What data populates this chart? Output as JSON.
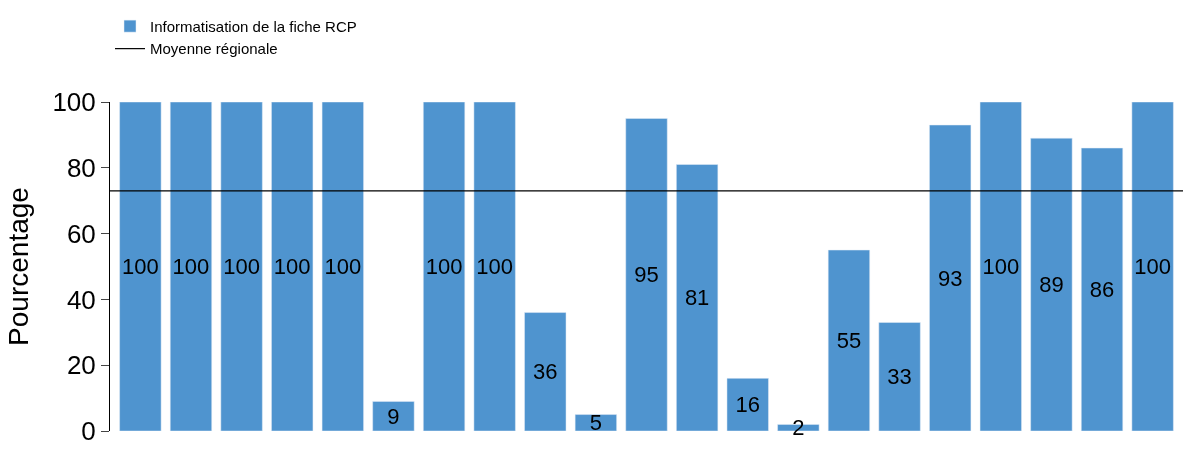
{
  "chart_data": {
    "type": "bar",
    "ylabel": "Pourcentage",
    "categories": [
      null,
      null,
      null,
      null,
      null,
      null,
      null,
      null,
      null,
      null,
      null,
      null,
      null,
      null,
      null,
      null,
      null,
      null,
      null,
      null,
      null
    ],
    "series": [
      {
        "name": "Informatisation de la fiche RCP",
        "color": "#4f94cf",
        "values": [
          100,
          100,
          100,
          100,
          100,
          9,
          100,
          100,
          36,
          5,
          95,
          81,
          16,
          2,
          55,
          33,
          93,
          100,
          89,
          86,
          100
        ]
      }
    ],
    "ref_lines": [
      {
        "axis": "y",
        "value": 73,
        "label": "Moyenne régionale",
        "color": "#000000",
        "line_style": "solid"
      }
    ],
    "data_labels": true,
    "ylim": [
      0,
      100
    ],
    "yticks": [
      0,
      20,
      40,
      60,
      80,
      100
    ],
    "legend": "top left"
  }
}
